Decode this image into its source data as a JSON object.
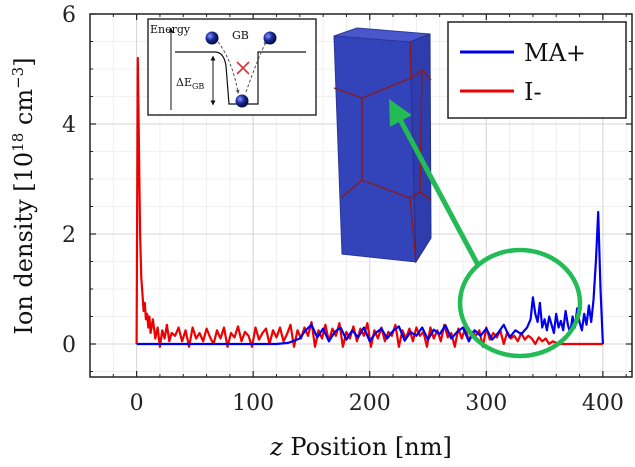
{
  "chart_data": {
    "type": "line",
    "xlabel_var": "z",
    "xlabel_rest": " Position [nm]",
    "ylabel": "Ion density [10",
    "ylabel_exp": "18",
    "ylabel_unit": " cm",
    "ylabel_unit_exp": "−3",
    "ylabel_close": "]",
    "xlim": [
      -40,
      425
    ],
    "ylim": [
      -0.6,
      6
    ],
    "xticks": [
      0,
      100,
      200,
      300,
      400
    ],
    "yticks": [
      0,
      2,
      4,
      6
    ],
    "xtick_labels": [
      "0",
      "100",
      "200",
      "300",
      "400"
    ],
    "ytick_labels": [
      "0",
      "2",
      "4",
      "6"
    ],
    "grid": true,
    "legend_position": "top-right",
    "series": [
      {
        "name": "MA+",
        "color": "#0000ee",
        "x": [
          0,
          10,
          20,
          30,
          40,
          50,
          60,
          70,
          80,
          90,
          100,
          110,
          120,
          130,
          140,
          145,
          150,
          155,
          160,
          165,
          170,
          175,
          180,
          185,
          190,
          195,
          200,
          205,
          210,
          215,
          220,
          225,
          230,
          235,
          240,
          245,
          250,
          255,
          260,
          265,
          270,
          275,
          280,
          285,
          290,
          295,
          300,
          305,
          310,
          315,
          320,
          325,
          330,
          335,
          338,
          340,
          342,
          344,
          346,
          348,
          350,
          352,
          354,
          356,
          358,
          360,
          362,
          364,
          366,
          368,
          370,
          372,
          374,
          376,
          378,
          380,
          382,
          384,
          386,
          388,
          390,
          392,
          394,
          396,
          398,
          400
        ],
        "y": [
          0,
          0,
          0,
          0,
          0,
          0,
          0,
          0,
          0,
          0,
          0,
          0,
          0,
          0.02,
          0.1,
          0.25,
          0.35,
          0.12,
          0.28,
          0.05,
          0.22,
          0.3,
          0.08,
          0.25,
          0.12,
          0.3,
          0.05,
          0.2,
          0.28,
          0.1,
          0.24,
          0.32,
          0.06,
          0.22,
          0.15,
          0.3,
          0.08,
          0.26,
          0.18,
          0.34,
          0.1,
          0.22,
          0.3,
          0.05,
          0.25,
          0.15,
          0.28,
          0.08,
          0.2,
          0.35,
          0.12,
          0.25,
          0.18,
          0.3,
          0.45,
          0.85,
          0.55,
          0.4,
          0.75,
          0.3,
          0.45,
          0.25,
          0.5,
          0.35,
          0.2,
          0.55,
          0.3,
          0.42,
          0.25,
          0.6,
          0.35,
          0.2,
          0.5,
          0.3,
          0.65,
          0.4,
          0.25,
          0.55,
          0.35,
          0.7,
          0.4,
          0.8,
          1.5,
          2.4,
          1.0,
          0
        ]
      },
      {
        "name": "I-",
        "color": "#ee0000",
        "x": [
          0,
          1,
          2,
          3,
          4,
          5,
          6,
          7,
          8,
          9,
          10,
          11,
          12,
          14,
          16,
          18,
          20,
          22,
          24,
          26,
          28,
          30,
          33,
          36,
          39,
          42,
          45,
          48,
          51,
          54,
          57,
          60,
          63,
          66,
          69,
          72,
          75,
          78,
          81,
          84,
          87,
          90,
          93,
          96,
          99,
          102,
          105,
          108,
          111,
          114,
          117,
          120,
          123,
          126,
          129,
          132,
          135,
          138,
          141,
          144,
          147,
          150,
          153,
          156,
          159,
          162,
          165,
          168,
          171,
          174,
          177,
          180,
          183,
          186,
          189,
          192,
          195,
          198,
          201,
          204,
          207,
          210,
          213,
          216,
          219,
          222,
          225,
          228,
          231,
          234,
          237,
          240,
          243,
          246,
          249,
          252,
          255,
          258,
          261,
          264,
          267,
          270,
          273,
          276,
          279,
          282,
          285,
          288,
          291,
          294,
          297,
          300,
          303,
          306,
          309,
          312,
          315,
          318,
          321,
          324,
          327,
          330,
          333,
          336,
          339,
          342,
          345,
          348,
          351,
          354,
          357,
          360,
          363,
          366,
          369,
          372,
          375,
          378,
          381,
          384,
          387,
          390,
          393,
          396,
          399,
          400
        ],
        "y": [
          0,
          5.2,
          3.5,
          2.0,
          1.2,
          0.9,
          0.6,
          0.75,
          0.45,
          0.55,
          0.3,
          0.5,
          0.2,
          0.45,
          0.1,
          0.3,
          -0.05,
          0.25,
          0.1,
          0.35,
          0.05,
          0.2,
          0.15,
          0.3,
          0.05,
          0.25,
          -0.05,
          0.3,
          0.1,
          0.2,
          0.05,
          0.28,
          0.12,
          0.0,
          0.25,
          0.1,
          0.3,
          -0.05,
          0.2,
          0.12,
          0.32,
          0.05,
          0.22,
          0.15,
          -0.05,
          0.3,
          0.08,
          0.2,
          0.28,
          0.0,
          0.25,
          0.12,
          0.3,
          0.05,
          0.18,
          0.35,
          -0.05,
          0.25,
          0.1,
          0.3,
          0.15,
          0.4,
          -0.05,
          0.25,
          0.1,
          0.35,
          0.05,
          0.28,
          0.15,
          0.38,
          -0.05,
          0.22,
          0.1,
          0.32,
          0.05,
          0.28,
          0.15,
          0.38,
          -0.05,
          0.25,
          0.1,
          0.3,
          0.05,
          0.22,
          0.15,
          0.35,
          -0.05,
          0.25,
          0.1,
          0.28,
          0.05,
          0.3,
          0.15,
          0.22,
          -0.05,
          0.3,
          0.1,
          0.25,
          0.05,
          0.35,
          0.12,
          0.2,
          -0.05,
          0.28,
          0.1,
          0.3,
          0.05,
          0.22,
          0.15,
          0.25,
          -0.05,
          0.3,
          0.08,
          0.2,
          0.12,
          0.25,
          0.0,
          0.22,
          0.1,
          0.15,
          0.05,
          0.2,
          0.08,
          0.15,
          0.1,
          0.0,
          0.12,
          0.05,
          0.1,
          0.0,
          0.05,
          0.02,
          0.0,
          0.0,
          0.0,
          0.0,
          0.0,
          0.0,
          0.0,
          0.0,
          0.0,
          0.0,
          0.0,
          0.0,
          0.0,
          0.0
        ]
      }
    ]
  },
  "inset": {
    "energy_label": "Energy",
    "gb_label": "GB",
    "delta_label": "ΔE",
    "delta_sub": "GB"
  },
  "annotation_color": "#22bb55",
  "grain_color": "#3344bb",
  "grain_boundary_color": "#8b1a1a"
}
